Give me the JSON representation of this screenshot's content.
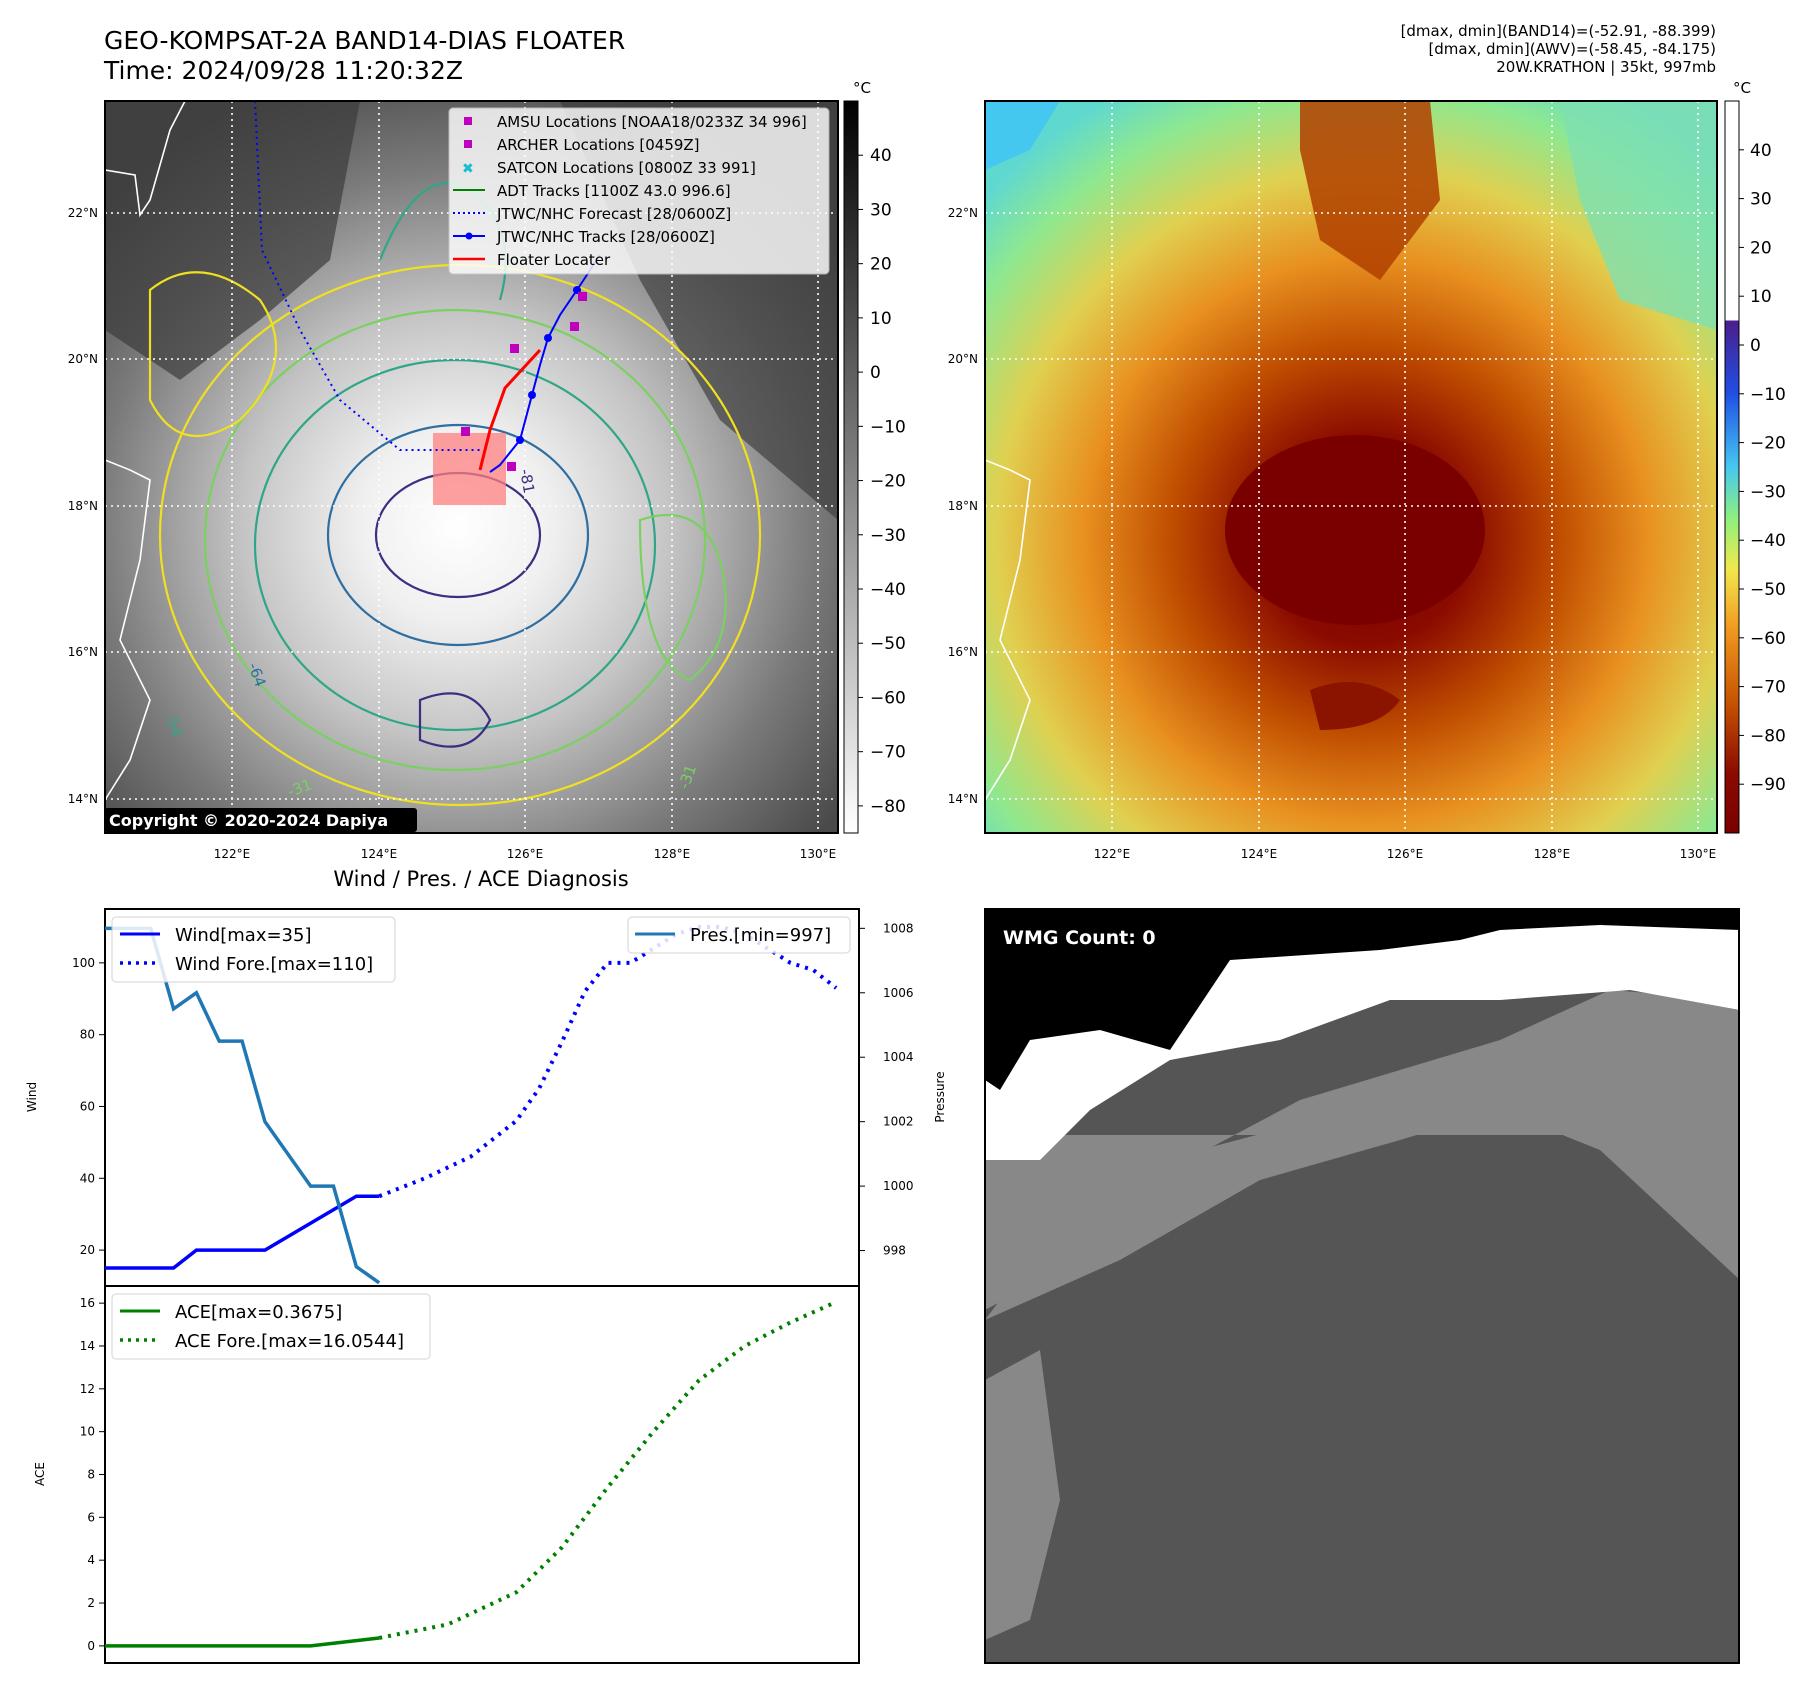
{
  "header": {
    "title_line1": "GEO-KOMPSAT-2A BAND14-DIAS FLOATER",
    "title_line2": "Time: 2024/09/28 11:20:32Z",
    "info_line1": "[dmax, dmin](BAND14)=(-52.91, -88.399)",
    "info_line2": "[dmax, dmin](AWV)=(-58.45, -84.175)",
    "info_line3": "20W.KRATHON | 35kt, 997mb"
  },
  "map": {
    "lat_labels": [
      "22°N",
      "20°N",
      "18°N",
      "16°N",
      "14°N"
    ],
    "lon_labels": [
      "122°E",
      "124°E",
      "126°E",
      "128°E",
      "130°E"
    ],
    "copyright": "Copyright © 2020-2024 Dapiya",
    "contour_labels": [
      "-64",
      "-54",
      "-31",
      "-31",
      "-81"
    ],
    "legend": [
      {
        "label": "AMSU Locations [NOAA18/0233Z 34 996]",
        "marker": "square",
        "color": "#bf00bf"
      },
      {
        "label": "ARCHER Locations [0459Z]",
        "marker": "square",
        "color": "#bf00bf"
      },
      {
        "label": "SATCON Locations [0800Z 33 991]",
        "marker": "x",
        "color": "#17becf"
      },
      {
        "label": "ADT Tracks [1100Z 43.0 996.6]",
        "marker": "line",
        "color": "#008000"
      },
      {
        "label": "JTWC/NHC Forecast [28/0600Z]",
        "marker": "dotted",
        "color": "#0000ff"
      },
      {
        "label": "JTWC/NHC Tracks [28/0600Z]",
        "marker": "line-dot",
        "color": "#0000ff"
      },
      {
        "label": "Floater Locater",
        "marker": "line",
        "color": "#ff0000"
      }
    ]
  },
  "colorbar1": {
    "unit": "°C",
    "ticks": [
      "40",
      "30",
      "20",
      "10",
      "0",
      "−10",
      "−20",
      "−30",
      "−40",
      "−50",
      "−60",
      "−70",
      "−80"
    ]
  },
  "colorbar2": {
    "unit": "°C",
    "ticks": [
      "40",
      "30",
      "20",
      "10",
      "0",
      "−10",
      "−20",
      "−30",
      "−40",
      "−50",
      "−60",
      "−70",
      "−80",
      "−90"
    ]
  },
  "colors": {
    "wind": "#0000ff",
    "pressure": "#1f77b4",
    "ace": "#008000",
    "floater": "#ff0000"
  },
  "wmg": {
    "label": "WMG Count: 0"
  },
  "chart_data": [
    {
      "type": "line",
      "title": "Wind / Pres. / ACE Diagnosis",
      "ylabel": "Wind",
      "ylabel_right": "Pressure",
      "yticks": [
        "100",
        "80",
        "60",
        "40",
        "20"
      ],
      "yticks_right": [
        "1008",
        "1006",
        "1004",
        "1002",
        "1000",
        "998"
      ],
      "ylim": [
        10,
        115
      ],
      "ylim_right": [
        996.9,
        1008.6
      ],
      "xlim": [
        0,
        33
      ],
      "series": [
        {
          "name": "Wind[max=35]",
          "axis": "left",
          "style": "solid",
          "x": [
            0,
            3,
            4,
            7,
            11,
            12
          ],
          "values": [
            15,
            15,
            20,
            20,
            35,
            35
          ]
        },
        {
          "name": "Wind Fore.[max=110]",
          "axis": "left",
          "style": "dotted",
          "x": [
            12,
            14,
            16,
            18,
            19,
            20,
            21,
            22,
            23,
            24,
            25,
            26,
            27,
            28,
            29,
            30,
            31,
            32
          ],
          "values": [
            35,
            40,
            46,
            56,
            65,
            78,
            92,
            100,
            100,
            104,
            108,
            110,
            110,
            108,
            104,
            100,
            98,
            93
          ]
        },
        {
          "name": "Pres.[min=997]",
          "axis": "right",
          "style": "solid",
          "x": [
            0,
            2,
            3,
            4,
            5,
            6,
            7,
            8,
            9,
            10,
            11,
            12
          ],
          "values": [
            1008,
            1008,
            1005.5,
            1006,
            1004.5,
            1004.5,
            1002,
            1001,
            1000,
            1000,
            997.5,
            997
          ]
        }
      ]
    },
    {
      "type": "line",
      "ylabel": "ACE",
      "yticks": [
        "16",
        "14",
        "12",
        "10",
        "8",
        "6",
        "4",
        "2",
        "0"
      ],
      "ylim": [
        -0.8,
        16.8
      ],
      "xlim": [
        0,
        33
      ],
      "series": [
        {
          "name": "ACE[max=0.3675]",
          "style": "solid",
          "x": [
            0,
            9,
            12
          ],
          "values": [
            0,
            0,
            0.3675
          ]
        },
        {
          "name": "ACE Fore.[max=16.0544]",
          "style": "dotted",
          "x": [
            12,
            15,
            18,
            20,
            22,
            24,
            26,
            28,
            30,
            32
          ],
          "values": [
            0.37,
            1.0,
            2.5,
            4.6,
            7.4,
            10.0,
            12.4,
            14.0,
            15.1,
            16.0544
          ]
        }
      ]
    }
  ]
}
